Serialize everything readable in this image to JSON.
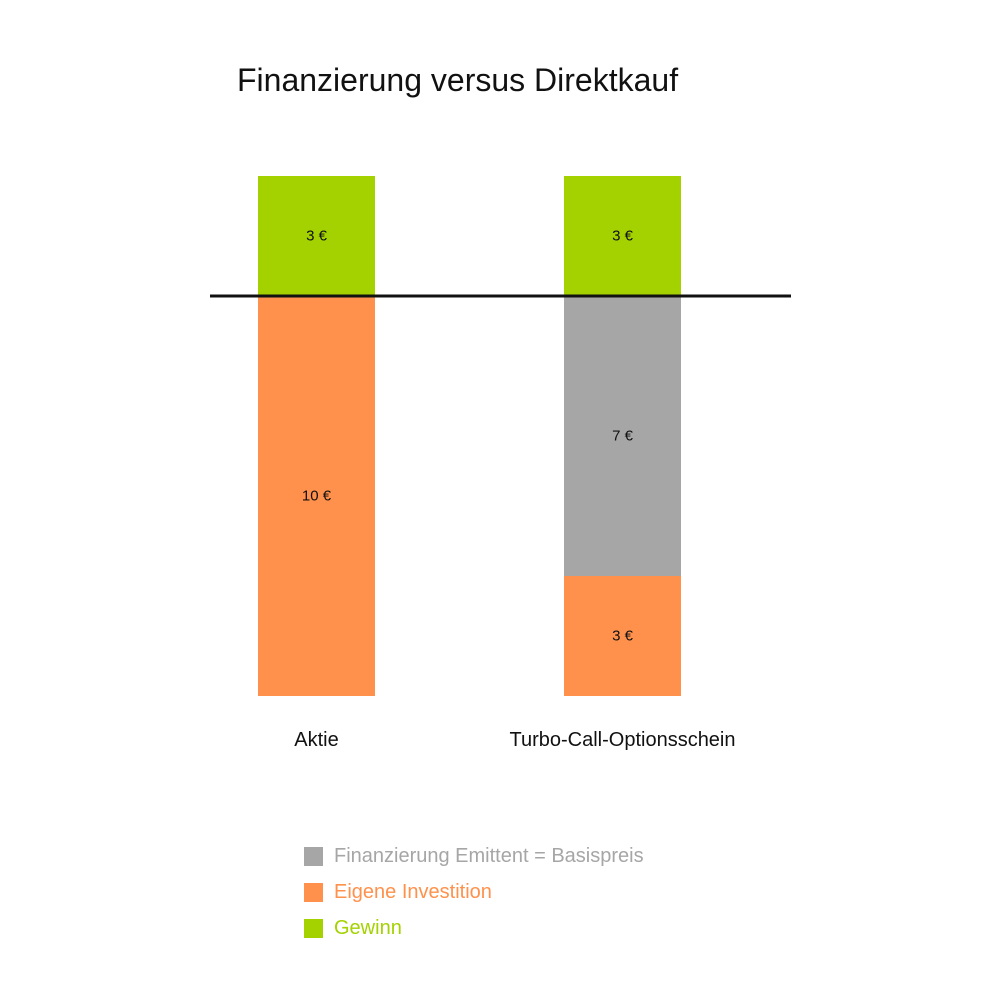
{
  "colors": {
    "financing": "#a6a6a6",
    "investment": "#ff914c",
    "profit": "#a3d200",
    "text": "#111111",
    "baseline": "#111111"
  },
  "chart_data": {
    "type": "bar",
    "stacked": true,
    "title": "Finanzierung versus Direktkauf",
    "categories": [
      "Aktie",
      "Turbo-Call-Optionsschein"
    ],
    "baseline_value": 0,
    "unit": "€",
    "series": [
      {
        "name": "Finanzierung Emittent = Basispreis",
        "color_key": "financing",
        "direction": "below",
        "values": [
          0,
          7
        ],
        "labels": [
          "",
          "7 €"
        ]
      },
      {
        "name": "Eigene Investition",
        "color_key": "investment",
        "direction": "below",
        "values": [
          10,
          3
        ],
        "labels": [
          "10 €",
          "3 €"
        ]
      },
      {
        "name": "Gewinn",
        "color_key": "profit",
        "direction": "above",
        "values": [
          3,
          3
        ],
        "labels": [
          "3 €",
          "3 €"
        ]
      }
    ],
    "legend": {
      "position": "bottom",
      "items": [
        {
          "label": "Finanzierung Emittent = Basispreis",
          "color_key": "financing"
        },
        {
          "label": "Eigene Investition",
          "color_key": "investment"
        },
        {
          "label": "Gewinn",
          "color_key": "profit"
        }
      ]
    }
  }
}
